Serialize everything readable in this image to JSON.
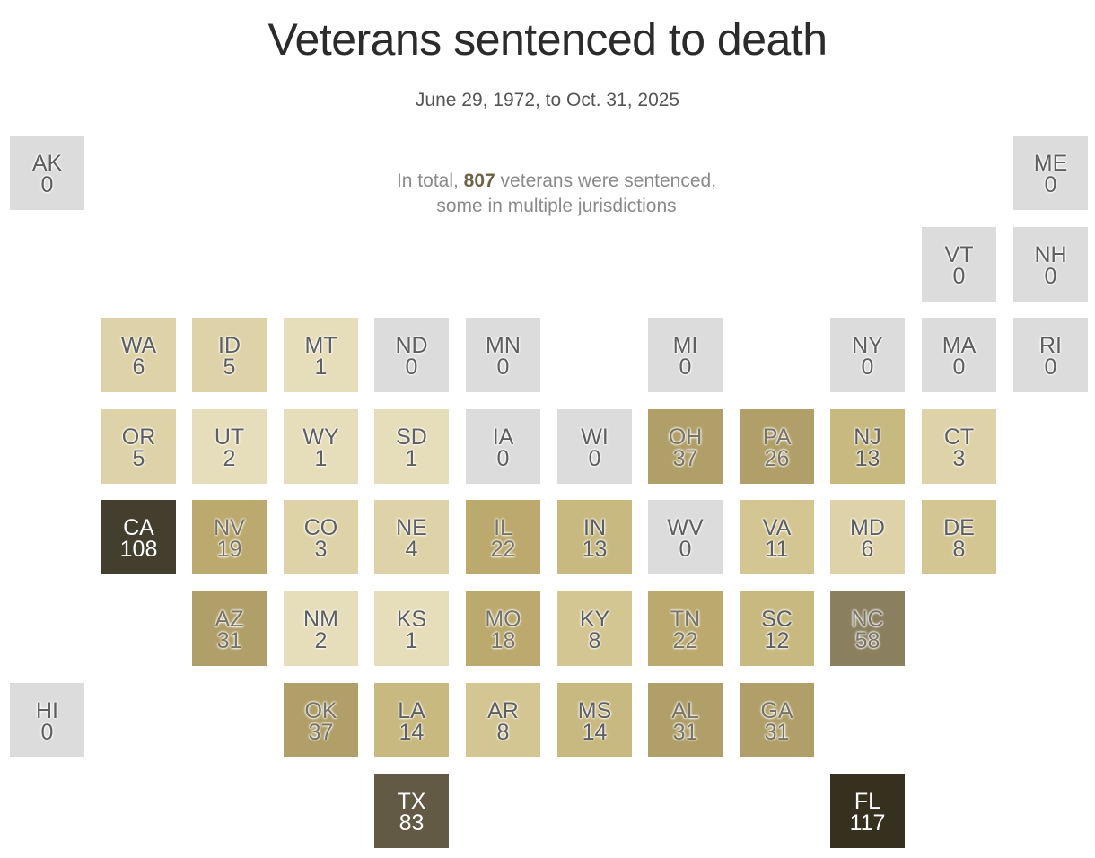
{
  "chart_data": {
    "type": "tile-grid-map",
    "title": "Veterans sentenced to death",
    "subtitle": "June 29, 1972, to Oct. 31, 2025",
    "annotation": {
      "prefix": "In total, ",
      "total": "807",
      "suffix": " veterans were sentenced,",
      "line2": "some in multiple jurisdictions"
    },
    "colors": {
      "zero": "#dcdcdc",
      "scale": [
        "#e6ddba",
        "#ded3a8",
        "#d3c693",
        "#c8b980",
        "#bba96e",
        "#b09f68",
        "#8a7f5e",
        "#625a44",
        "#443e2e",
        "#36301f"
      ]
    },
    "states": [
      {
        "abbr": "AK",
        "value": 0,
        "col": 0,
        "row": 0
      },
      {
        "abbr": "ME",
        "value": 0,
        "col": 11,
        "row": 0
      },
      {
        "abbr": "VT",
        "value": 0,
        "col": 10,
        "row": 1
      },
      {
        "abbr": "NH",
        "value": 0,
        "col": 11,
        "row": 1
      },
      {
        "abbr": "WA",
        "value": 6,
        "col": 1,
        "row": 2
      },
      {
        "abbr": "ID",
        "value": 5,
        "col": 2,
        "row": 2
      },
      {
        "abbr": "MT",
        "value": 1,
        "col": 3,
        "row": 2
      },
      {
        "abbr": "ND",
        "value": 0,
        "col": 4,
        "row": 2
      },
      {
        "abbr": "MN",
        "value": 0,
        "col": 5,
        "row": 2
      },
      {
        "abbr": "MI",
        "value": 0,
        "col": 7,
        "row": 2
      },
      {
        "abbr": "NY",
        "value": 0,
        "col": 9,
        "row": 2
      },
      {
        "abbr": "MA",
        "value": 0,
        "col": 10,
        "row": 2
      },
      {
        "abbr": "RI",
        "value": 0,
        "col": 11,
        "row": 2
      },
      {
        "abbr": "OR",
        "value": 5,
        "col": 1,
        "row": 3
      },
      {
        "abbr": "UT",
        "value": 2,
        "col": 2,
        "row": 3
      },
      {
        "abbr": "WY",
        "value": 1,
        "col": 3,
        "row": 3
      },
      {
        "abbr": "SD",
        "value": 1,
        "col": 4,
        "row": 3
      },
      {
        "abbr": "IA",
        "value": 0,
        "col": 5,
        "row": 3
      },
      {
        "abbr": "WI",
        "value": 0,
        "col": 6,
        "row": 3
      },
      {
        "abbr": "OH",
        "value": 37,
        "col": 7,
        "row": 3
      },
      {
        "abbr": "PA",
        "value": 26,
        "col": 8,
        "row": 3
      },
      {
        "abbr": "NJ",
        "value": 13,
        "col": 9,
        "row": 3
      },
      {
        "abbr": "CT",
        "value": 3,
        "col": 10,
        "row": 3
      },
      {
        "abbr": "CA",
        "value": 108,
        "col": 1,
        "row": 4
      },
      {
        "abbr": "NV",
        "value": 19,
        "col": 2,
        "row": 4
      },
      {
        "abbr": "CO",
        "value": 3,
        "col": 3,
        "row": 4
      },
      {
        "abbr": "NE",
        "value": 4,
        "col": 4,
        "row": 4
      },
      {
        "abbr": "IL",
        "value": 22,
        "col": 5,
        "row": 4
      },
      {
        "abbr": "IN",
        "value": 13,
        "col": 6,
        "row": 4
      },
      {
        "abbr": "WV",
        "value": 0,
        "col": 7,
        "row": 4
      },
      {
        "abbr": "VA",
        "value": 11,
        "col": 8,
        "row": 4
      },
      {
        "abbr": "MD",
        "value": 6,
        "col": 9,
        "row": 4
      },
      {
        "abbr": "DE",
        "value": 8,
        "col": 10,
        "row": 4
      },
      {
        "abbr": "AZ",
        "value": 31,
        "col": 2,
        "row": 5
      },
      {
        "abbr": "NM",
        "value": 2,
        "col": 3,
        "row": 5
      },
      {
        "abbr": "KS",
        "value": 1,
        "col": 4,
        "row": 5
      },
      {
        "abbr": "MO",
        "value": 18,
        "col": 5,
        "row": 5
      },
      {
        "abbr": "KY",
        "value": 8,
        "col": 6,
        "row": 5
      },
      {
        "abbr": "TN",
        "value": 22,
        "col": 7,
        "row": 5
      },
      {
        "abbr": "SC",
        "value": 12,
        "col": 8,
        "row": 5
      },
      {
        "abbr": "NC",
        "value": 58,
        "col": 9,
        "row": 5
      },
      {
        "abbr": "HI",
        "value": 0,
        "col": 0,
        "row": 6
      },
      {
        "abbr": "OK",
        "value": 37,
        "col": 3,
        "row": 6
      },
      {
        "abbr": "LA",
        "value": 14,
        "col": 4,
        "row": 6
      },
      {
        "abbr": "AR",
        "value": 8,
        "col": 5,
        "row": 6
      },
      {
        "abbr": "MS",
        "value": 14,
        "col": 6,
        "row": 6
      },
      {
        "abbr": "AL",
        "value": 31,
        "col": 7,
        "row": 6
      },
      {
        "abbr": "GA",
        "value": 31,
        "col": 8,
        "row": 6
      },
      {
        "abbr": "TX",
        "value": 83,
        "col": 4,
        "row": 7
      },
      {
        "abbr": "FL",
        "value": 117,
        "col": 9,
        "row": 7
      }
    ]
  }
}
